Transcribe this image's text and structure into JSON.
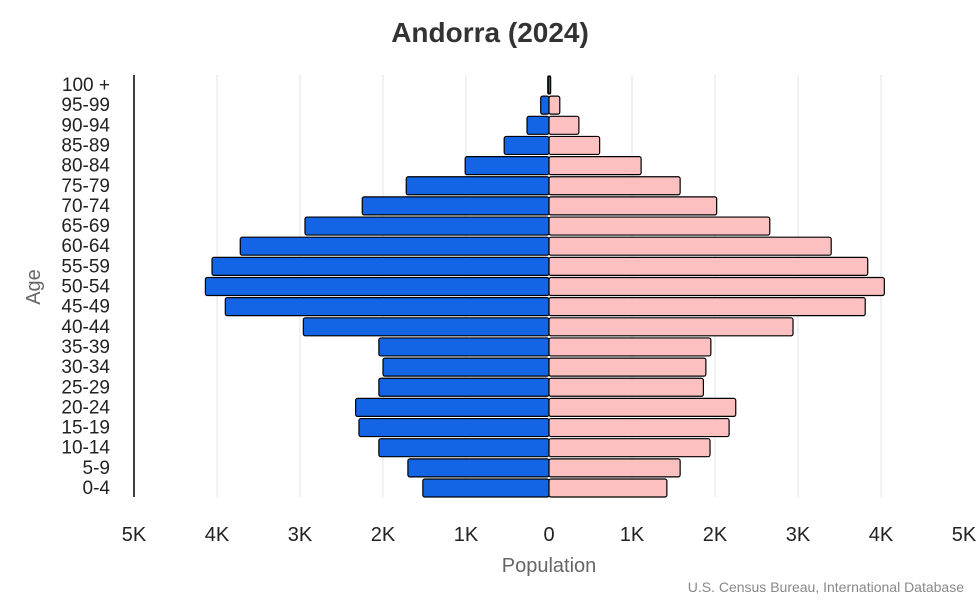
{
  "chart_data": {
    "type": "bar",
    "orientation": "horizontal-pyramid",
    "title": "Andorra (2024)",
    "xlabel": "Population",
    "ylabel": "Age",
    "source": "U.S. Census Bureau, International Database",
    "xlim": [
      -5000,
      5000
    ],
    "x_ticks": [
      "5K",
      "4K",
      "3K",
      "2K",
      "1K",
      "0",
      "1K",
      "2K",
      "3K",
      "4K",
      "5K"
    ],
    "grid": true,
    "categories": [
      "100 +",
      "95-99",
      "90-94",
      "85-89",
      "80-84",
      "75-79",
      "70-74",
      "65-69",
      "60-64",
      "55-59",
      "50-54",
      "45-49",
      "40-44",
      "35-39",
      "30-34",
      "25-29",
      "20-24",
      "15-19",
      "10-14",
      "5-9",
      "0-4"
    ],
    "series": [
      {
        "side": "left",
        "color": "#1464e6",
        "values": [
          15,
          100,
          265,
          540,
          1010,
          1720,
          2250,
          2940,
          3720,
          4060,
          4140,
          3900,
          2960,
          2050,
          2000,
          2050,
          2330,
          2290,
          2050,
          1700,
          1520
        ]
      },
      {
        "side": "right",
        "color": "#fcc0c0",
        "values": [
          20,
          130,
          360,
          610,
          1110,
          1580,
          2020,
          2660,
          3400,
          3840,
          4040,
          3810,
          2940,
          1950,
          1890,
          1860,
          2250,
          2170,
          1940,
          1580,
          1420
        ]
      }
    ]
  }
}
